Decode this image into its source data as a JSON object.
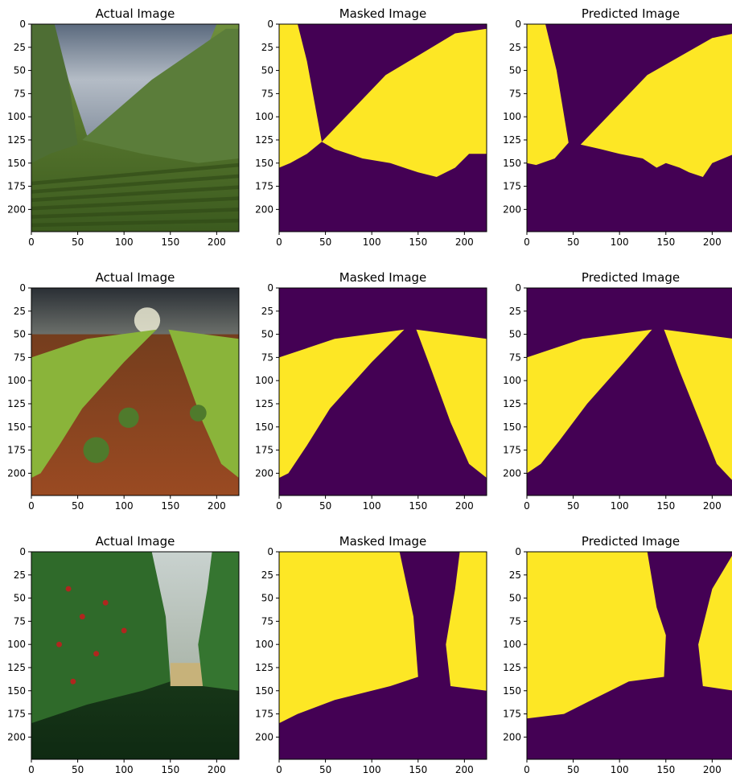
{
  "colors": {
    "mask_background": "#440154",
    "mask_foreground": "#fde725"
  },
  "axis": {
    "x_ticks": [
      "0",
      "50",
      "100",
      "150",
      "200"
    ],
    "y_ticks": [
      "0",
      "25",
      "50",
      "75",
      "100",
      "125",
      "150",
      "175",
      "200"
    ]
  },
  "panels": [
    {
      "title": "Actual Image",
      "kind": "photo",
      "scene": "vineyard"
    },
    {
      "title": "Masked Image",
      "kind": "mask",
      "scene": "vineyard"
    },
    {
      "title": "Predicted Image",
      "kind": "mask",
      "scene": "vineyard"
    },
    {
      "title": "Actual Image",
      "kind": "photo",
      "scene": "crop-rows"
    },
    {
      "title": "Masked Image",
      "kind": "mask",
      "scene": "crop-rows"
    },
    {
      "title": "Predicted Image",
      "kind": "mask",
      "scene": "crop-rows"
    },
    {
      "title": "Actual Image",
      "kind": "photo",
      "scene": "tomato-greenhouse"
    },
    {
      "title": "Masked Image",
      "kind": "mask",
      "scene": "tomato-greenhouse"
    },
    {
      "title": "Predicted Image",
      "kind": "mask",
      "scene": "tomato-greenhouse"
    }
  ]
}
